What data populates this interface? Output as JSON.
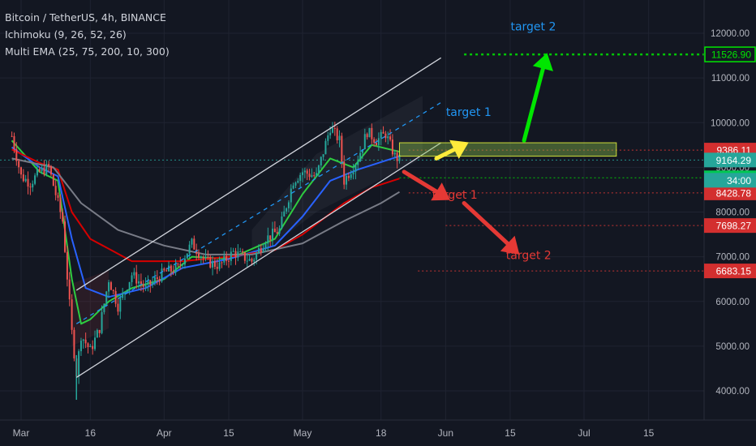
{
  "legend": {
    "symbol": "Bitcoin / TetherUS, 4h, BINANCE",
    "indicator_1": "Ichimoku (9, 26, 52, 26)",
    "indicator_2": "Multi EMA (25, 75, 200, 10, 300)"
  },
  "colors": {
    "background": "#131722",
    "grid": "#1f2331",
    "axis_text": "#b2b5be",
    "candle_up": "#26a69a",
    "candle_down": "#ef5350",
    "ema_green": "#2ecc40",
    "ema_blue": "#2962ff",
    "ema_red": "#d50000",
    "ema_gray": "#787b86",
    "channel": "#d1d4dc",
    "channel_mid": "#2196f3",
    "target_up": "#00e600",
    "target_down": "#e53935",
    "arrow_yellow": "#ffeb3b",
    "label_blue": "#2196f3"
  },
  "chart_data": {
    "type": "candlestick",
    "symbol": "Bitcoin / TetherUS",
    "interval": "4h",
    "exchange": "BINANCE",
    "y_axis": {
      "ticks": [
        4000,
        5000,
        6000,
        7000,
        8000,
        9000,
        10000,
        11000,
        12000
      ],
      "tick_labels": [
        "4000.00",
        "5000.00",
        "6000.00",
        "7000.00",
        "8000.00",
        "9000.00",
        "10000.00",
        "11000.00",
        "12000.00"
      ]
    },
    "x_axis": {
      "tick_labels": [
        "Mar",
        "16",
        "Apr",
        "15",
        "May",
        "18",
        "Jun",
        "15",
        "Jul",
        "15"
      ],
      "tick_dates": [
        "2020-03-01",
        "2020-03-16",
        "2020-04-01",
        "2020-04-15",
        "2020-05-01",
        "2020-05-18",
        "2020-06-01",
        "2020-06-15",
        "2020-07-01",
        "2020-07-15"
      ]
    },
    "price_path": [
      [
        "2020-02-28",
        9700
      ],
      [
        "2020-03-01",
        8800
      ],
      [
        "2020-03-03",
        8650
      ],
      [
        "2020-03-05",
        8900
      ],
      [
        "2020-03-07",
        9000
      ],
      [
        "2020-03-08",
        8600
      ],
      [
        "2020-03-10",
        7800
      ],
      [
        "2020-03-12",
        5300
      ],
      [
        "2020-03-13",
        4400
      ],
      [
        "2020-03-14",
        5250
      ],
      [
        "2020-03-16",
        4900
      ],
      [
        "2020-03-18",
        5400
      ],
      [
        "2020-03-20",
        6500
      ],
      [
        "2020-03-22",
        5900
      ],
      [
        "2020-03-25",
        6600
      ],
      [
        "2020-03-28",
        6300
      ],
      [
        "2020-04-01",
        6650
      ],
      [
        "2020-04-04",
        6750
      ],
      [
        "2020-04-07",
        7300
      ],
      [
        "2020-04-10",
        6900
      ],
      [
        "2020-04-13",
        6800
      ],
      [
        "2020-04-16",
        7100
      ],
      [
        "2020-04-20",
        6900
      ],
      [
        "2020-04-23",
        7400
      ],
      [
        "2020-04-26",
        7600
      ],
      [
        "2020-04-29",
        8700
      ],
      [
        "2020-05-01",
        8900
      ],
      [
        "2020-05-04",
        8800
      ],
      [
        "2020-05-07",
        9900
      ],
      [
        "2020-05-09",
        9600
      ],
      [
        "2020-05-10",
        8700
      ],
      [
        "2020-05-13",
        9200
      ],
      [
        "2020-05-15",
        9800
      ],
      [
        "2020-05-17",
        9600
      ],
      [
        "2020-05-19",
        9750
      ],
      [
        "2020-05-21",
        9250
      ],
      [
        "2020-05-22",
        9164
      ]
    ],
    "ema_lines": [
      {
        "color_key": "ema_green",
        "points": [
          [
            "2020-02-28",
            9600
          ],
          [
            "2020-03-05",
            8900
          ],
          [
            "2020-03-09",
            8700
          ],
          [
            "2020-03-12",
            6500
          ],
          [
            "2020-03-14",
            5500
          ],
          [
            "2020-03-16",
            5600
          ],
          [
            "2020-03-20",
            6000
          ],
          [
            "2020-03-25",
            6300
          ],
          [
            "2020-04-01",
            6500
          ],
          [
            "2020-04-07",
            7000
          ],
          [
            "2020-04-15",
            6950
          ],
          [
            "2020-04-25",
            7400
          ],
          [
            "2020-05-01",
            8400
          ],
          [
            "2020-05-07",
            9200
          ],
          [
            "2020-05-12",
            9000
          ],
          [
            "2020-05-16",
            9500
          ],
          [
            "2020-05-22",
            9350
          ]
        ]
      },
      {
        "color_key": "ema_blue",
        "points": [
          [
            "2020-02-28",
            9450
          ],
          [
            "2020-03-05",
            9000
          ],
          [
            "2020-03-09",
            8800
          ],
          [
            "2020-03-12",
            7400
          ],
          [
            "2020-03-15",
            6300
          ],
          [
            "2020-03-20",
            6100
          ],
          [
            "2020-03-28",
            6300
          ],
          [
            "2020-04-05",
            6750
          ],
          [
            "2020-04-15",
            6950
          ],
          [
            "2020-04-25",
            7250
          ],
          [
            "2020-05-01",
            7900
          ],
          [
            "2020-05-07",
            8700
          ],
          [
            "2020-05-13",
            8950
          ],
          [
            "2020-05-22",
            9250
          ]
        ]
      },
      {
        "color_key": "ema_red",
        "points": [
          [
            "2020-02-28",
            9400
          ],
          [
            "2020-03-05",
            9100
          ],
          [
            "2020-03-09",
            8950
          ],
          [
            "2020-03-12",
            8000
          ],
          [
            "2020-03-16",
            7400
          ],
          [
            "2020-03-25",
            6900
          ],
          [
            "2020-04-05",
            6900
          ],
          [
            "2020-04-15",
            7000
          ],
          [
            "2020-04-25",
            7150
          ],
          [
            "2020-05-01",
            7500
          ],
          [
            "2020-05-10",
            8200
          ],
          [
            "2020-05-16",
            8550
          ],
          [
            "2020-05-22",
            8750
          ]
        ]
      },
      {
        "color_key": "ema_gray",
        "points": [
          [
            "2020-02-28",
            9200
          ],
          [
            "2020-03-08",
            9000
          ],
          [
            "2020-03-14",
            8200
          ],
          [
            "2020-03-22",
            7600
          ],
          [
            "2020-04-01",
            7250
          ],
          [
            "2020-04-10",
            7050
          ],
          [
            "2020-04-20",
            7050
          ],
          [
            "2020-05-01",
            7300
          ],
          [
            "2020-05-10",
            7800
          ],
          [
            "2020-05-18",
            8200
          ],
          [
            "2020-05-22",
            8450
          ]
        ]
      }
    ],
    "channel": {
      "upper": [
        [
          "2020-03-13",
          6250
        ],
        [
          "2020-05-31",
          11450
        ]
      ],
      "middle": [
        [
          "2020-03-13",
          5500
        ],
        [
          "2020-05-31",
          10450
        ]
      ],
      "lower": [
        [
          "2020-03-13",
          4300
        ],
        [
          "2020-05-31",
          9550
        ]
      ]
    },
    "zone": {
      "from": "2020-05-22",
      "to": "2020-07-08",
      "low": 9250,
      "high": 9550
    },
    "horizontal_levels": [
      {
        "price": 11526.9,
        "label": "11526.90",
        "kind": "up_target"
      },
      {
        "price": 9386.11,
        "label": "9386.11",
        "kind": "down"
      },
      {
        "price": 9164.29,
        "label": "9164.29",
        "kind": "current"
      },
      {
        "price": 8765.62,
        "label": "8765.62",
        "kind": "up_target"
      },
      {
        "price": 8428.78,
        "label": "8428.78",
        "kind": "down"
      },
      {
        "price": 7698.27,
        "label": "7698.27",
        "kind": "down"
      },
      {
        "price": 6683.15,
        "label": "6683.15",
        "kind": "down"
      }
    ],
    "countdown_label": "34:00",
    "annotations": [
      {
        "text": "target 2",
        "date": "2020-06-20",
        "price": 12060,
        "color_key": "label_blue"
      },
      {
        "text": "target 1",
        "date": "2020-06-06",
        "price": 10150,
        "color_key": "label_blue"
      },
      {
        "text": "target 1",
        "date": "2020-06-03",
        "price": 8300,
        "color_key": "target_down"
      },
      {
        "text": "target 2",
        "date": "2020-06-19",
        "price": 6950,
        "color_key": "target_down"
      }
    ]
  }
}
